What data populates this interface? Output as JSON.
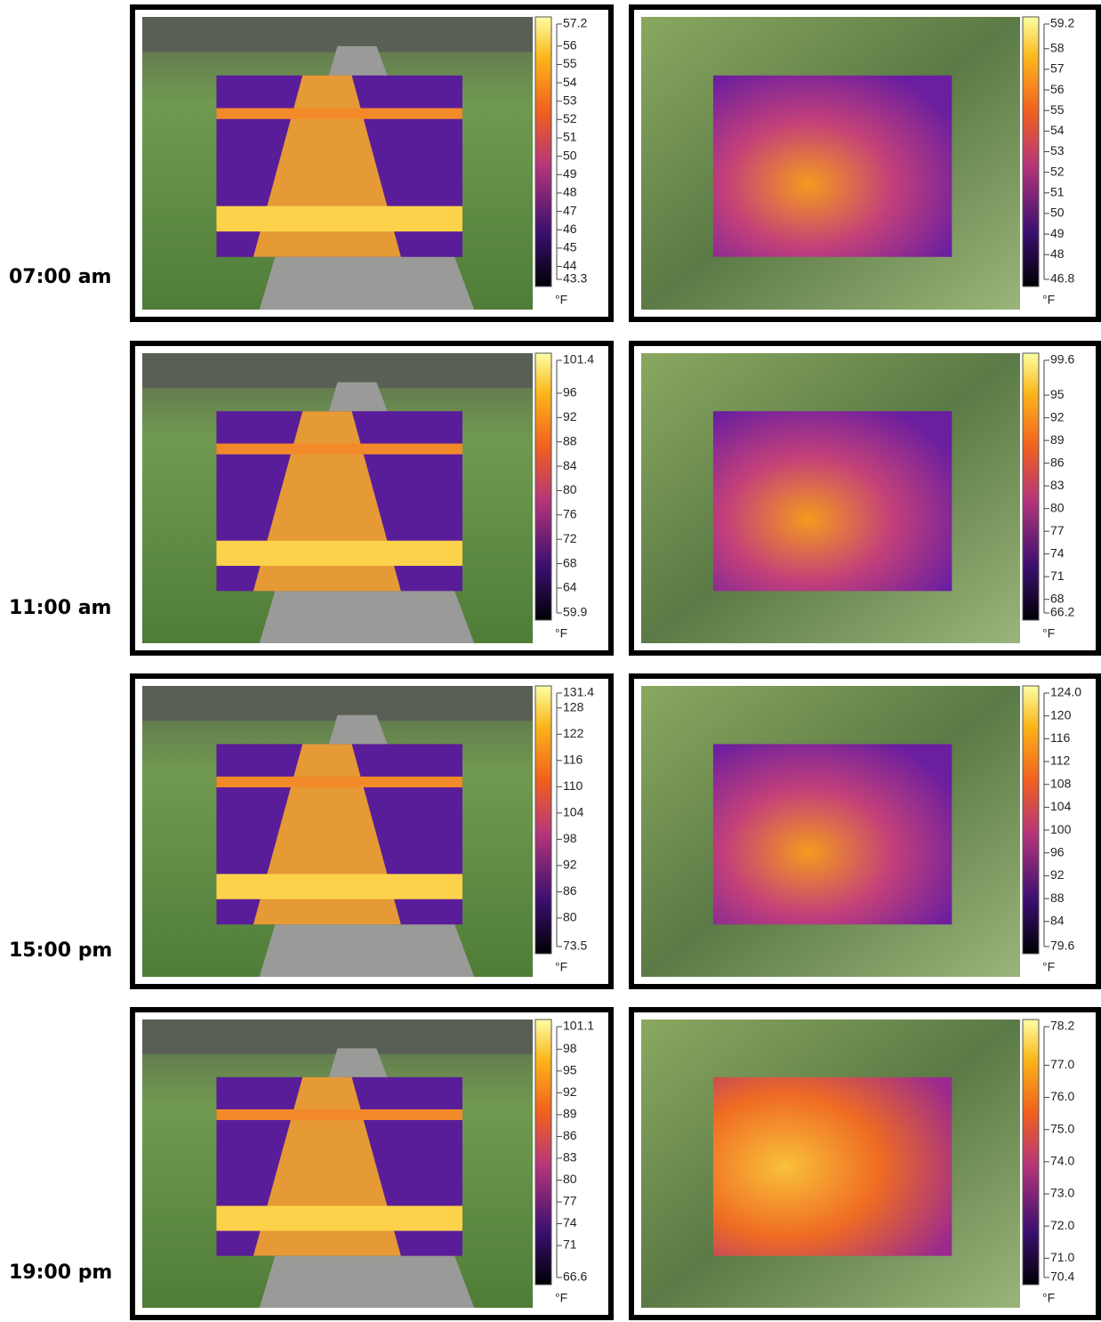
{
  "rows": [
    {
      "time": "07:00 am",
      "panels": [
        {
          "ticks": [
            57.2,
            56,
            55,
            54,
            53,
            52,
            51,
            50,
            49,
            48,
            47,
            46,
            45,
            44,
            43.3
          ],
          "unit": "°F"
        },
        {
          "ticks": [
            59.2,
            58,
            57,
            56,
            55,
            54,
            53,
            52,
            51,
            50,
            49,
            48,
            46.8
          ],
          "unit": "°F"
        }
      ]
    },
    {
      "time": "11:00 am",
      "panels": [
        {
          "ticks": [
            101.4,
            96,
            92,
            88,
            84,
            80,
            76,
            72,
            68,
            64,
            59.9
          ],
          "unit": "°F"
        },
        {
          "ticks": [
            99.6,
            95,
            92,
            89,
            86,
            83,
            80,
            77,
            74,
            71,
            68,
            66.2
          ],
          "unit": "°F"
        }
      ]
    },
    {
      "time": "15:00 pm",
      "panels": [
        {
          "ticks": [
            131.4,
            128,
            122,
            116,
            110,
            104,
            98,
            92,
            86,
            80,
            73.5
          ],
          "unit": "°F"
        },
        {
          "ticks": [
            {
              "value": 124,
              "label": "124.0"
            },
            120,
            116,
            112,
            108,
            104,
            100,
            96,
            92,
            88,
            84,
            79.6
          ],
          "unit": "°F"
        }
      ]
    },
    {
      "time": "19:00 pm",
      "panels": [
        {
          "ticks": [
            101.1,
            98,
            95,
            92,
            89,
            86,
            83,
            80,
            77,
            74,
            71,
            66.6
          ],
          "unit": "°F"
        },
        {
          "ticks": [
            78.2,
            {
              "value": 77,
              "label": "77.0"
            },
            {
              "value": 76,
              "label": "76.0"
            },
            {
              "value": 75,
              "label": "75.0"
            },
            {
              "value": 74,
              "label": "74.0"
            },
            {
              "value": 73,
              "label": "73.0"
            },
            {
              "value": 72,
              "label": "72.0"
            },
            {
              "value": 71,
              "label": "71.0"
            },
            70.4
          ],
          "unit": "°F"
        }
      ]
    }
  ]
}
